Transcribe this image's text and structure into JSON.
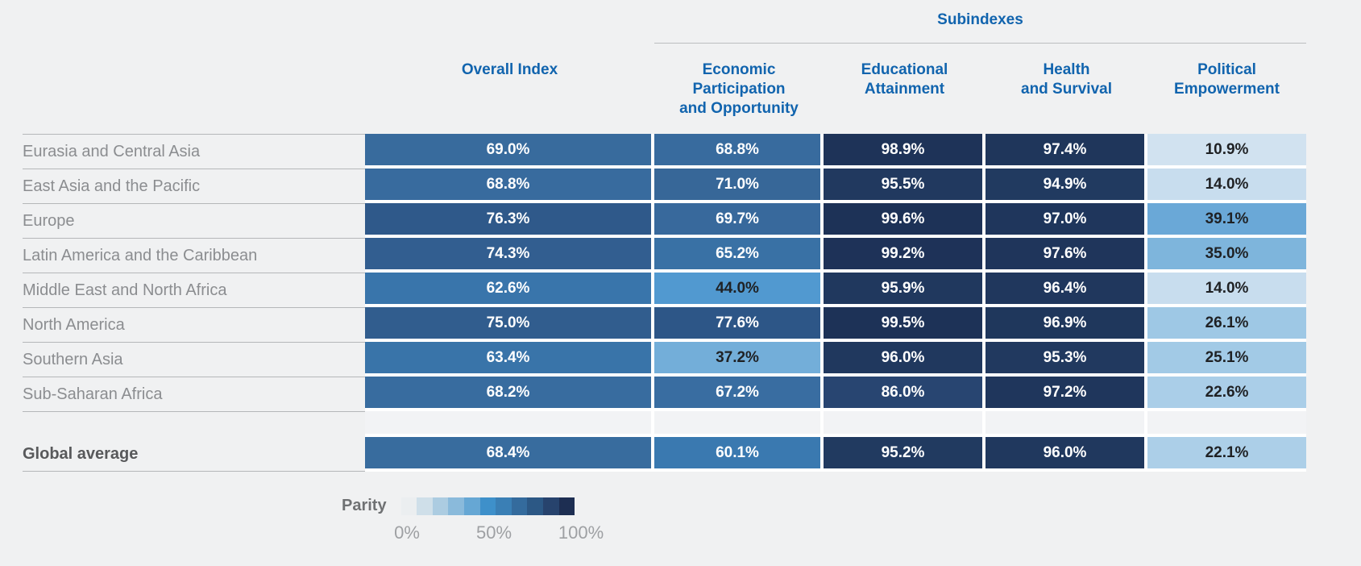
{
  "chart_data": {
    "type": "heatmap",
    "group_header": "Subindexes",
    "columns": [
      [
        "Overall Index"
      ],
      [
        "Economic Participation",
        "and Opportunity"
      ],
      [
        "Educational",
        "Attainment"
      ],
      [
        "Health",
        "and Survival"
      ],
      [
        "Political",
        "Empowerment"
      ]
    ],
    "rows": [
      {
        "label": "Eurasia and Central Asia",
        "values": [
          69.0,
          68.8,
          98.9,
          97.4,
          10.9
        ]
      },
      {
        "label": "East Asia and the Pacific",
        "values": [
          68.8,
          71.0,
          95.5,
          94.9,
          14.0
        ]
      },
      {
        "label": "Europe",
        "values": [
          76.3,
          69.7,
          99.6,
          97.0,
          39.1
        ]
      },
      {
        "label": "Latin America and the Caribbean",
        "values": [
          74.3,
          65.2,
          99.2,
          97.6,
          35.0
        ]
      },
      {
        "label": "Middle East and North Africa",
        "values": [
          62.6,
          44.0,
          95.9,
          96.4,
          14.0
        ]
      },
      {
        "label": "North America",
        "values": [
          75.0,
          77.6,
          99.5,
          96.9,
          26.1
        ]
      },
      {
        "label": "Southern Asia",
        "values": [
          63.4,
          37.2,
          96.0,
          95.3,
          25.1
        ]
      },
      {
        "label": "Sub-Saharan Africa",
        "values": [
          68.2,
          67.2,
          86.0,
          97.2,
          22.6
        ]
      }
    ],
    "global_average": {
      "label": "Global average",
      "values": [
        68.4,
        60.1,
        95.2,
        96.0,
        22.1
      ]
    },
    "unit": "%",
    "value_format": "one_decimal_percent",
    "legend": {
      "label": "Parity",
      "ticks": [
        "0%",
        "50%",
        "100%"
      ],
      "swatches": [
        "#ebeef0",
        "#cfdfe9",
        "#accce1",
        "#8abadb",
        "#66a7d4",
        "#3e90ca",
        "#3a7fb5",
        "#346b9d",
        "#2c5885",
        "#27436d",
        "#1d2e52"
      ]
    },
    "color_scale": {
      "stops": [
        [
          0,
          "#edeff1"
        ],
        [
          10,
          "#d4e3f0"
        ],
        [
          15,
          "#c5dbee"
        ],
        [
          25,
          "#a2cae6"
        ],
        [
          35,
          "#7eb5dc"
        ],
        [
          44,
          "#5199d0"
        ],
        [
          50,
          "#468cc4"
        ],
        [
          60,
          "#3a79b0"
        ],
        [
          70,
          "#38699b"
        ],
        [
          78,
          "#2c5586"
        ],
        [
          86,
          "#284571"
        ],
        [
          95,
          "#213a60"
        ],
        [
          100,
          "#1d3156"
        ]
      ],
      "white_text_threshold": 50
    }
  },
  "style": {
    "background": "#f0f1f2",
    "header_blue": "#1164ae",
    "row_label_gray": "#8b8d90",
    "global_label_gray": "#58595b",
    "separator_gray": "#b5b7b9",
    "subindex_rule_gray": "#bcbec0",
    "value_dark_text": "#1f2124",
    "value_light_text": "#ffffff",
    "cell_gap_white": "#ffffff",
    "parity_label_gray": "#6f7173",
    "tick_label_gray": "#9ea0a3"
  }
}
